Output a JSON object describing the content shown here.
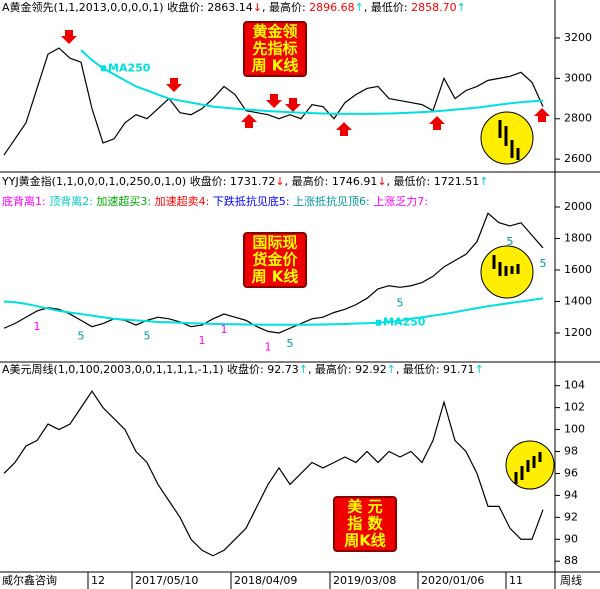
{
  "chart_data": [
    {
      "type": "line",
      "header": [
        {
          "text": "A黄金领先(1,1,2013,0,0,0,0,1)",
          "color": "#000000"
        },
        {
          "text": " 收盘价:",
          "color": "#000000"
        },
        {
          "text": " 2863.14",
          "color": "#000000"
        },
        {
          "text": "↓",
          "color": "#ff0000"
        },
        {
          "text": ", 最高价:",
          "color": "#000000"
        },
        {
          "text": " 2896.68",
          "color": "#ff0000"
        },
        {
          "text": "↑",
          "color": "#00cccc"
        },
        {
          "text": ", 最低价:",
          "color": "#000000"
        },
        {
          "text": " 2858.70",
          "color": "#ff0000"
        },
        {
          "text": "↑",
          "color": "#00cccc"
        }
      ],
      "annotation": [
        "黄金领",
        "先指标",
        "周  K线"
      ],
      "ylim": [
        2556,
        3299
      ],
      "yticks": [
        2600,
        2800,
        3000,
        3200
      ],
      "series": [
        {
          "color": "#000000",
          "values": [
            2620,
            2700,
            2780,
            2950,
            3120,
            3150,
            3100,
            3080,
            2850,
            2680,
            2700,
            2780,
            2820,
            2800,
            2850,
            2900,
            2830,
            2820,
            2850,
            2900,
            2960,
            2920,
            2840,
            2830,
            2820,
            2800,
            2820,
            2800,
            2870,
            2860,
            2800,
            2880,
            2920,
            2950,
            2960,
            2900,
            2890,
            2880,
            2870,
            2840,
            3000,
            2900,
            2940,
            2960,
            2990,
            3000,
            3010,
            3030,
            2980,
            2860
          ]
        },
        {
          "name": "MA250",
          "color": "#00e0e0",
          "values": [
            null,
            null,
            null,
            null,
            null,
            null,
            null,
            3140,
            3090,
            3050,
            3020,
            2990,
            2960,
            2940,
            2920,
            2900,
            2890,
            2880,
            2870,
            2860,
            2855,
            2850,
            2846,
            2842,
            2838,
            2835,
            2832,
            2830,
            2828,
            2826,
            2825,
            2824,
            2824,
            2824,
            2825,
            2826,
            2828,
            2830,
            2833,
            2836,
            2840,
            2845,
            2850,
            2855,
            2862,
            2870,
            2876,
            2882,
            2886,
            2890
          ]
        }
      ]
    },
    {
      "type": "line",
      "header": [
        {
          "text": "YYJ黄金指(1,1,0,0,0,1,0,250,0,1,0)",
          "color": "#000000"
        },
        {
          "text": " 收盘价:",
          "color": "#000000"
        },
        {
          "text": " 1731.72",
          "color": "#000000"
        },
        {
          "text": "↓",
          "color": "#ff0000"
        },
        {
          "text": ", 最高价:",
          "color": "#000000"
        },
        {
          "text": " 1746.91",
          "color": "#000000"
        },
        {
          "text": "↓",
          "color": "#ff0000"
        },
        {
          "text": ", 最低价:",
          "color": "#000000"
        },
        {
          "text": " 1721.51",
          "color": "#000000"
        },
        {
          "text": "↑",
          "color": "#00cccc"
        }
      ],
      "legend": [
        {
          "text": "底背离1:",
          "color": "#ff00ff"
        },
        {
          "text": " 顶背离2:",
          "color": "#00cccc"
        },
        {
          "text": " 加速超买3:",
          "color": "#00aa00"
        },
        {
          "text": " 加速超卖4:",
          "color": "#ff0000"
        },
        {
          "text": " 下跌抵抗见底5:",
          "color": "#0000ff"
        },
        {
          "text": " 上涨抵抗见顶6:",
          "color": "#009999"
        },
        {
          "text": " 上涨乏力7:",
          "color": "#ff00ff"
        }
      ],
      "annotation": [
        "国际现",
        "货金价",
        "周  K线"
      ],
      "ylim": [
        1041,
        2108
      ],
      "yticks": [
        1200,
        1400,
        1600,
        1800,
        2000
      ],
      "signals": [
        {
          "at": 3,
          "label": "1",
          "color": "#ff00ff"
        },
        {
          "at": 7,
          "label": "5",
          "color": "#009999"
        },
        {
          "at": 13,
          "label": "5",
          "color": "#009999"
        },
        {
          "at": 18,
          "label": "1",
          "color": "#ff00ff"
        },
        {
          "at": 20,
          "label": "1",
          "color": "#ff00ff"
        },
        {
          "at": 24,
          "label": "1",
          "color": "#ff00ff"
        },
        {
          "at": 26,
          "label": "5",
          "color": "#009999"
        },
        {
          "at": 36,
          "label": "5",
          "color": "#009999"
        },
        {
          "at": 46,
          "label": "5",
          "color": "#009999"
        },
        {
          "at": 49,
          "label": "5",
          "color": "#009999"
        }
      ],
      "series": [
        {
          "color": "#000000",
          "values": [
            1230,
            1260,
            1300,
            1340,
            1360,
            1350,
            1320,
            1280,
            1240,
            1260,
            1290,
            1280,
            1250,
            1280,
            1300,
            1290,
            1270,
            1240,
            1250,
            1290,
            1320,
            1300,
            1280,
            1240,
            1210,
            1200,
            1230,
            1260,
            1290,
            1300,
            1330,
            1350,
            1380,
            1420,
            1480,
            1500,
            1490,
            1500,
            1520,
            1560,
            1620,
            1660,
            1700,
            1780,
            1960,
            1900,
            1880,
            1900,
            1820,
            1740
          ]
        },
        {
          "name": "MA250",
          "color": "#00e0e0",
          "values": [
            1400,
            1395,
            1385,
            1370,
            1355,
            1340,
            1330,
            1320,
            1310,
            1300,
            1290,
            1285,
            1280,
            1275,
            1270,
            1268,
            1265,
            1262,
            1260,
            1258,
            1256,
            1255,
            1254,
            1253,
            1252,
            1252,
            1252,
            1252,
            1253,
            1254,
            1255,
            1257,
            1260,
            1262,
            1265,
            1270,
            1278,
            1290,
            1300,
            1310,
            1320,
            1332,
            1345,
            1358,
            1370,
            1380,
            1390,
            1400,
            1410,
            1420
          ]
        }
      ]
    },
    {
      "type": "line",
      "header": [
        {
          "text": "A美元周线(1,0,100,2003,0,0,1,1,1,1,-1,1)",
          "color": "#000000"
        },
        {
          "text": " 收盘价:",
          "color": "#000000"
        },
        {
          "text": " 92.73",
          "color": "#000000"
        },
        {
          "text": "↑",
          "color": "#00cccc"
        },
        {
          "text": ", 最高价:",
          "color": "#000000"
        },
        {
          "text": " 92.92",
          "color": "#000000"
        },
        {
          "text": "↑",
          "color": "#00cccc"
        },
        {
          "text": ", 最低价:",
          "color": "#000000"
        },
        {
          "text": " 91.71",
          "color": "#000000"
        },
        {
          "text": "↑",
          "color": "#00cccc"
        }
      ],
      "annotation": [
        "美  元",
        "指  数",
        "周K线"
      ],
      "ylim": [
        87.2,
        104.7
      ],
      "yticks": [
        88,
        90,
        92,
        94,
        96,
        98,
        100,
        102,
        104
      ],
      "xlabel_left": "威尔鑫咨询",
      "xlabel_right": "周线",
      "xticks": [
        {
          "value": 8,
          "label": "12"
        },
        {
          "value": 12,
          "label": "2017/05/10"
        },
        {
          "value": 21,
          "label": "2018/04/09"
        },
        {
          "value": 30,
          "label": "2019/03/08"
        },
        {
          "value": 38,
          "label": "2020/01/06"
        },
        {
          "value": 46,
          "label": "11"
        }
      ],
      "series": [
        {
          "color": "#000000",
          "values": [
            96,
            97,
            98.5,
            99,
            100.5,
            100,
            100.5,
            102,
            103.5,
            102,
            101,
            100,
            98,
            97,
            95,
            93.5,
            92,
            90,
            89,
            88.5,
            89,
            90,
            91,
            93,
            95,
            96.5,
            95,
            96,
            97,
            96.5,
            97,
            97.5,
            97,
            98,
            97,
            98,
            97.5,
            98,
            97,
            99,
            102.5,
            99,
            98,
            96,
            93,
            93,
            91,
            90,
            90,
            92.7
          ]
        }
      ]
    }
  ]
}
